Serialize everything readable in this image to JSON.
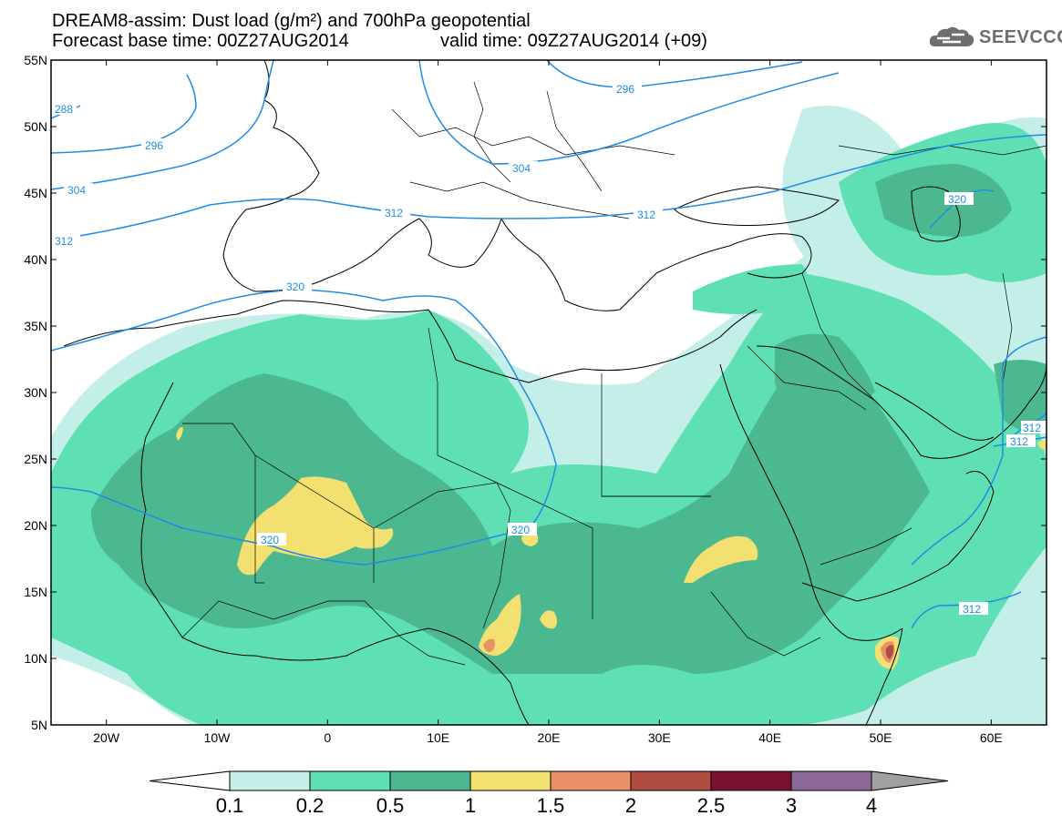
{
  "title": {
    "line1": "DREAM8-assim: Dust load (g/m²) and 700hPa geopotential",
    "line2": "Forecast base time: 00Z27AUG2014",
    "valid": "valid time: 09Z27AUG2014 (+09)"
  },
  "logo": {
    "text": "SEEVCCC",
    "icon": "cloud-icon"
  },
  "map": {
    "lon_range": [
      -25,
      65
    ],
    "lat_range": [
      5,
      55
    ],
    "lat_ticks": [
      "55N",
      "50N",
      "45N",
      "40N",
      "35N",
      "30N",
      "25N",
      "20N",
      "15N",
      "10N",
      "5N"
    ],
    "lon_ticks": [
      "20W",
      "10W",
      "0",
      "10E",
      "20E",
      "30E",
      "40E",
      "50E",
      "60E"
    ],
    "contour_color": "#1e8ce6",
    "contour_labels": [
      "288",
      "296",
      "296",
      "304",
      "304",
      "312",
      "312",
      "312",
      "320",
      "320",
      "320",
      "312",
      "312",
      "312",
      "320"
    ]
  },
  "colorbar": {
    "labels": [
      "0.1",
      "0.2",
      "0.5",
      "1",
      "1.5",
      "2",
      "2.5",
      "3",
      "4"
    ],
    "colors": [
      "#c3efe8",
      "#5ee0b4",
      "#4cb88f",
      "#f2e070",
      "#e89068",
      "#b04d40",
      "#7a1030",
      "#8c6898"
    ],
    "low_triangle": "#ffffff",
    "high_triangle": "#a0a0a0"
  }
}
